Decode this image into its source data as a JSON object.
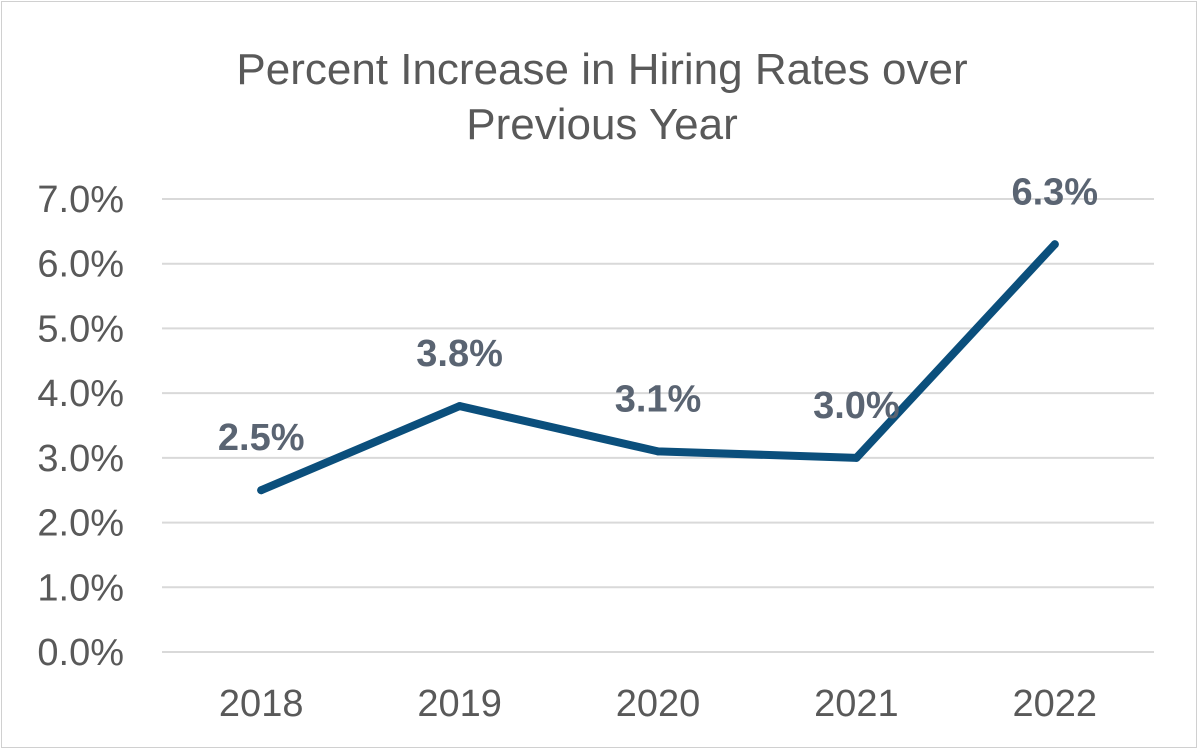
{
  "chart_data": {
    "type": "line",
    "title_lines": [
      "Percent Increase in Hiring Rates over",
      "Previous Year"
    ],
    "categories": [
      "2018",
      "2019",
      "2020",
      "2021",
      "2022"
    ],
    "series": [
      {
        "values": [
          2.5,
          3.8,
          3.1,
          3.0,
          6.3
        ]
      }
    ],
    "data_labels": [
      "2.5%",
      "3.8%",
      "3.1%",
      "3.0%",
      "6.3%"
    ],
    "y_ticks": [
      {
        "value": 0,
        "label": "0.0%"
      },
      {
        "value": 1,
        "label": "1.0%"
      },
      {
        "value": 2,
        "label": "2.0%"
      },
      {
        "value": 3,
        "label": "3.0%"
      },
      {
        "value": 4,
        "label": "4.0%"
      },
      {
        "value": 5,
        "label": "5.0%"
      },
      {
        "value": 6,
        "label": "6.0%"
      },
      {
        "value": 7,
        "label": "7.0%"
      }
    ],
    "ylim": [
      0,
      7
    ],
    "grid": true,
    "legend": "none",
    "line_color": "#0b4f7c"
  }
}
